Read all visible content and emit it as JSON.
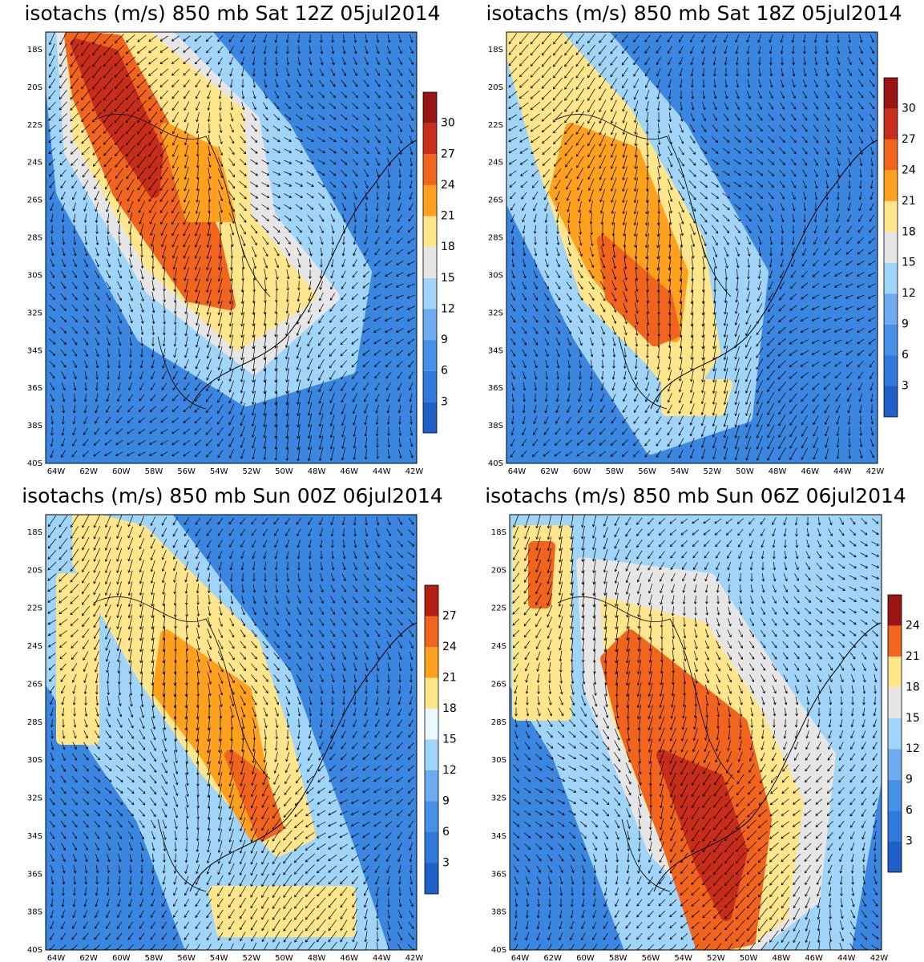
{
  "panels": [
    {
      "title": "isotachs (m/s) 850 mb Sat 12Z 05jul2014",
      "lat_labels": [
        "18S",
        "20S",
        "22S",
        "24S",
        "26S",
        "28S",
        "30S",
        "32S",
        "34S",
        "36S",
        "38S",
        "40S"
      ],
      "lon_labels": [
        "64W",
        "62W",
        "60W",
        "58W",
        "56W",
        "54W",
        "52W",
        "50W",
        "48W",
        "46W",
        "44W",
        "42W"
      ],
      "colorbar": {
        "labels": [
          3,
          6,
          9,
          12,
          15,
          18,
          21,
          24,
          27,
          30
        ],
        "colors": [
          "#1f5fc8",
          "#2f78dc",
          "#4690e8",
          "#6eaaf0",
          "#a0d4f8",
          "#e6e6e6",
          "#ffe68c",
          "#ffa01e",
          "#f0641e",
          "#c82d19",
          "#9b1414"
        ]
      }
    },
    {
      "title": "isotachs (m/s) 850 mb Sat 18Z 05jul2014",
      "lat_labels": [
        "18S",
        "20S",
        "22S",
        "24S",
        "26S",
        "28S",
        "30S",
        "32S",
        "34S",
        "36S",
        "38S",
        "40S"
      ],
      "lon_labels": [
        "64W",
        "62W",
        "60W",
        "58W",
        "56W",
        "54W",
        "52W",
        "50W",
        "48W",
        "46W",
        "44W",
        "42W"
      ],
      "colorbar": {
        "labels": [
          3,
          6,
          9,
          12,
          15,
          18,
          21,
          24,
          27,
          30
        ],
        "colors": [
          "#1f5fc8",
          "#2f78dc",
          "#4690e8",
          "#6eaaf0",
          "#a0d4f8",
          "#e6e6e6",
          "#ffe68c",
          "#ffa01e",
          "#f0641e",
          "#c82d19",
          "#9b1414"
        ]
      }
    },
    {
      "title": "isotachs (m/s) 850 mb Sun 00Z 06jul2014",
      "lat_labels": [
        "18S",
        "20S",
        "22S",
        "24S",
        "26S",
        "28S",
        "30S",
        "32S",
        "34S",
        "36S",
        "38S",
        "40S"
      ],
      "lon_labels": [
        "64W",
        "62W",
        "60W",
        "58W",
        "56W",
        "54W",
        "52W",
        "50W",
        "48W",
        "46W",
        "44W",
        "42W"
      ],
      "colorbar": {
        "labels": [
          3,
          6,
          9,
          12,
          15,
          18,
          21,
          24,
          27
        ],
        "colors": [
          "#1f5fc8",
          "#2f78dc",
          "#4690e8",
          "#6eaaf0",
          "#a0d4f8",
          "#e8f8fc",
          "#ffe68c",
          "#ffa01e",
          "#f0641e",
          "#b41e14"
        ]
      }
    },
    {
      "title": "isotachs (m/s) 850 mb Sun 06Z 06jul2014",
      "lat_labels": [
        "18S",
        "20S",
        "22S",
        "24S",
        "26S",
        "28S",
        "30S",
        "32S",
        "34S",
        "36S",
        "38S",
        "40S"
      ],
      "lon_labels": [
        "64W",
        "62W",
        "60W",
        "58W",
        "56W",
        "54W",
        "52W",
        "50W",
        "48W",
        "46W",
        "44W",
        "42W"
      ],
      "colorbar": {
        "labels": [
          3,
          6,
          9,
          12,
          15,
          18,
          21,
          24
        ],
        "colors": [
          "#1f5fc8",
          "#2f78dc",
          "#4690e8",
          "#6eaaf0",
          "#a0d4f8",
          "#e6e6e6",
          "#ffe68c",
          "#f0641e",
          "#9b1414"
        ]
      }
    }
  ]
}
